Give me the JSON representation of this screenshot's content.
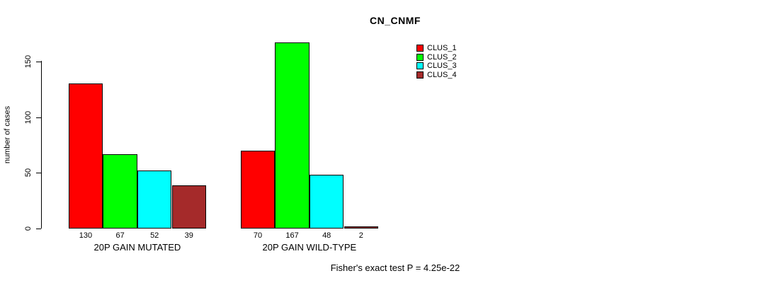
{
  "chart_data": {
    "type": "bar",
    "title": "CN_CNMF",
    "ylabel": "number of cases",
    "xlabel": "",
    "ylim": [
      0,
      150
    ],
    "yticks": [
      0,
      50,
      100,
      150
    ],
    "grid": false,
    "legend_position": "top-right",
    "categories": [
      "20P GAIN MUTATED",
      "20P GAIN WILD-TYPE"
    ],
    "series": [
      {
        "name": "CLUS_1",
        "color": "#ff0000",
        "values": [
          130,
          70
        ]
      },
      {
        "name": "CLUS_2",
        "color": "#00ff00",
        "values": [
          67,
          167
        ]
      },
      {
        "name": "CLUS_3",
        "color": "#00ffff",
        "values": [
          52,
          48
        ]
      },
      {
        "name": "CLUS_4",
        "color": "#a52a2a",
        "values": [
          39,
          2
        ]
      }
    ],
    "bar_value_labels": [
      [
        130,
        67,
        52,
        39
      ],
      [
        70,
        167,
        48,
        2
      ]
    ],
    "annotation": "Fisher's exact test P = 4.25e-22"
  }
}
